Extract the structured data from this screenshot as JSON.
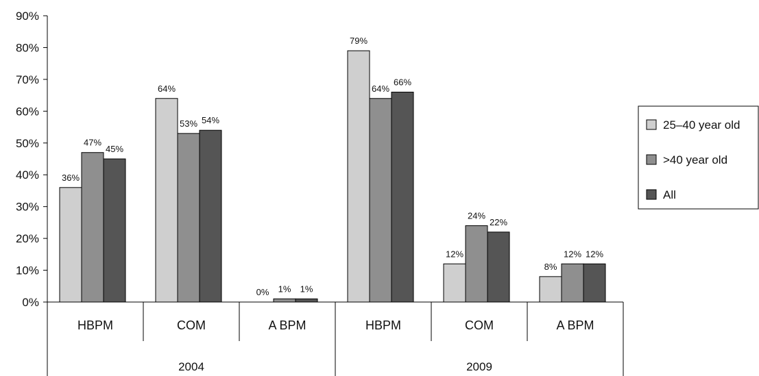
{
  "chart_data": {
    "type": "bar",
    "groups": [
      {
        "label": "2004",
        "categories": [
          "HBPM",
          "COM",
          "A BPM"
        ]
      },
      {
        "label": "2009",
        "categories": [
          "HBPM",
          "COM",
          "A BPM"
        ]
      }
    ],
    "series": [
      {
        "name": "25–40 year old",
        "color": "#cfcfcf",
        "values": [
          36,
          64,
          0,
          79,
          12,
          8
        ]
      },
      {
        "name": ">40 year old",
        "color": "#8f8f8f",
        "values": [
          47,
          53,
          1,
          64,
          24,
          12
        ]
      },
      {
        "name": "All",
        "color": "#555555",
        "values": [
          45,
          54,
          1,
          66,
          22,
          12
        ]
      }
    ],
    "data_labels": [
      [
        "36%",
        "64%",
        "0%",
        "79%",
        "12%",
        "8%"
      ],
      [
        "47%",
        "53%",
        "1%",
        "64%",
        "24%",
        "12%"
      ],
      [
        "45%",
        "54%",
        "1%",
        "66%",
        "22%",
        "12%"
      ]
    ],
    "y_ticks": [
      "0%",
      "10%",
      "20%",
      "30%",
      "40%",
      "50%",
      "60%",
      "70%",
      "80%",
      "90%"
    ],
    "ylim": [
      0,
      90
    ],
    "legend_position": "right",
    "grid": false,
    "title": "",
    "xlabel": "",
    "ylabel": ""
  }
}
